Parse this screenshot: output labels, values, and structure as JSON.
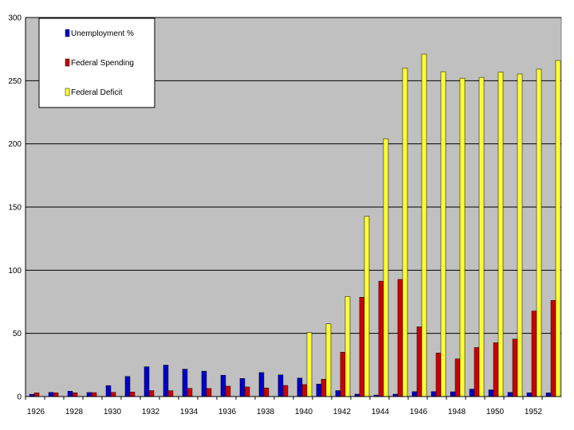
{
  "chart_data": {
    "type": "bar",
    "title": "",
    "xlabel": "",
    "ylabel": "",
    "ylim": [
      0,
      300
    ],
    "yticks": [
      0,
      50,
      100,
      150,
      200,
      250,
      300
    ],
    "categories": [
      "1926",
      "1927",
      "1928",
      "1929",
      "1930",
      "1931",
      "1932",
      "1933",
      "1934",
      "1935",
      "1936",
      "1937",
      "1938",
      "1939",
      "1940",
      "1941",
      "1942",
      "1943",
      "1944",
      "1945",
      "1946",
      "1947",
      "1948",
      "1949",
      "1950",
      "1951",
      "1952",
      "1953"
    ],
    "xtick_labels": [
      "1926",
      "1928",
      "1930",
      "1932",
      "1934",
      "1936",
      "1938",
      "1940",
      "1942",
      "1944",
      "1946",
      "1948",
      "1950",
      "1952"
    ],
    "series": [
      {
        "name": "Unemployment %",
        "color": "#0000cc",
        "values": [
          1.8,
          3.3,
          4.2,
          3.2,
          8.7,
          15.9,
          23.6,
          24.9,
          21.7,
          20.1,
          16.9,
          14.3,
          19.0,
          17.2,
          14.6,
          9.9,
          4.7,
          1.9,
          1.2,
          1.9,
          3.9,
          3.9,
          3.8,
          5.9,
          5.3,
          3.3,
          3.0,
          2.9
        ]
      },
      {
        "name": "Federal Spending",
        "color": "#cc0000",
        "values": [
          2.9,
          2.9,
          3.0,
          3.1,
          3.3,
          3.6,
          4.7,
          4.6,
          6.5,
          6.4,
          8.2,
          7.6,
          6.8,
          8.8,
          9.5,
          13.7,
          35.1,
          78.6,
          91.3,
          92.7,
          55.2,
          34.5,
          29.8,
          38.8,
          42.6,
          45.5,
          67.7,
          76.1
        ]
      },
      {
        "name": "Federal Deficit",
        "color": "#ffff33",
        "values": [
          0,
          0,
          0,
          0,
          0,
          0,
          0,
          0,
          0,
          0,
          0,
          0,
          0,
          0,
          50.7,
          57.5,
          79.2,
          142.6,
          204.1,
          260.1,
          271.0,
          257.1,
          252.0,
          252.6,
          256.9,
          255.3,
          259.1,
          266.0
        ]
      }
    ],
    "legend_position": "top-left",
    "grid": true,
    "background": "#c0c0c0"
  }
}
